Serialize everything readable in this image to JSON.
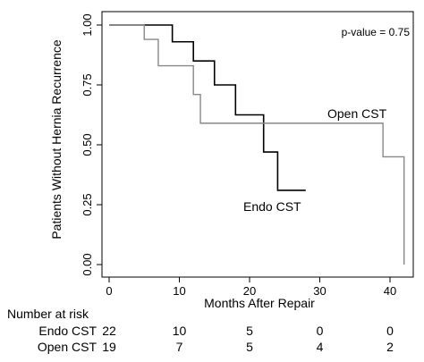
{
  "chart_data": {
    "type": "line",
    "title": "",
    "xlabel": "Months After Repair",
    "ylabel": "Patients Without Hernia Recurrence",
    "xlim": [
      0,
      43
    ],
    "ylim": [
      0,
      1
    ],
    "x_ticks": [
      "0",
      "10",
      "20",
      "30",
      "40"
    ],
    "x_tick_values": [
      0,
      10,
      20,
      30,
      40
    ],
    "y_ticks": [
      "0.00",
      "0.25",
      "0.50",
      "0.75",
      "1.00"
    ],
    "y_tick_values": [
      0,
      0.25,
      0.5,
      0.75,
      1.0
    ],
    "annotation": "p-value = 0.75",
    "grid": false,
    "series": [
      {
        "name": "Endo CST",
        "step": true,
        "color": "#000000",
        "x": [
          0,
          9,
          12,
          15,
          18,
          22,
          24,
          28
        ],
        "y": [
          1.0,
          0.93,
          0.85,
          0.75,
          0.625,
          0.47,
          0.31,
          0.31
        ]
      },
      {
        "name": "Open CST",
        "step": true,
        "color": "#888888",
        "x": [
          0,
          5,
          7,
          12,
          13,
          39,
          42,
          42
        ],
        "y": [
          1.0,
          0.94,
          0.83,
          0.71,
          0.59,
          0.45,
          0.45,
          0.0
        ]
      }
    ],
    "risk_table": {
      "title": "Number at risk",
      "rows": [
        {
          "label": "Endo CST",
          "counts": [
            "22",
            "10",
            "5",
            "0",
            "0"
          ]
        },
        {
          "label": "Open CST",
          "counts": [
            "19",
            "7",
            "5",
            "4",
            "2"
          ]
        }
      ]
    }
  }
}
